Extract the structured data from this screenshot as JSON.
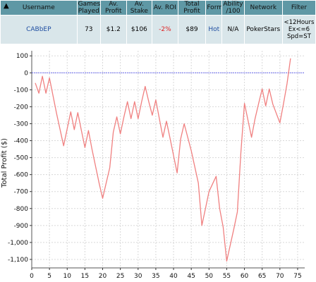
{
  "table": {
    "headers": [
      "Username",
      "Games Played",
      "Av. Profit",
      "Av. Stake",
      "Av. ROI",
      "Total Profit",
      "Form",
      "Ability /100",
      "Network",
      "Filter"
    ],
    "row": {
      "username": "CABbEP",
      "games_played": "73",
      "av_profit": "$1.2",
      "av_stake": "$106",
      "av_roi": "-2%",
      "total_profit": "$89",
      "form": "Hot",
      "ability": "N/A",
      "network": "PokerStars",
      "filter": [
        "<12Hours",
        "Ex<=6",
        "Spd=ST"
      ]
    }
  },
  "colors": {
    "header_bg": "#5f98a5",
    "row_bg": "#d9e6ea",
    "line": "#f08080",
    "zero_line": "#6a6af0",
    "grid": "#d8d8d8"
  },
  "chart_data": {
    "type": "line",
    "ylabel": "Total Profit ($)",
    "xlabel": "",
    "xlim": [
      0,
      77
    ],
    "ylim": [
      -1150,
      130
    ],
    "x_ticks": [
      0,
      5,
      10,
      15,
      20,
      25,
      30,
      35,
      40,
      45,
      50,
      55,
      60,
      65,
      70,
      75
    ],
    "y_ticks": [
      100,
      0,
      -100,
      -200,
      -300,
      -400,
      -500,
      -600,
      -700,
      -800,
      -900,
      -1000,
      -1100
    ],
    "y_tick_labels": [
      "100",
      "0",
      "-100",
      "-200",
      "-300",
      "-400",
      "-500",
      "-600",
      "-700",
      "-800",
      "-900",
      "-1,000",
      "-1,100"
    ],
    "grid": true,
    "reference_line": 0,
    "series": [
      {
        "x": [
          1,
          2,
          3,
          4,
          5,
          7,
          9,
          11,
          12,
          13,
          14,
          15,
          16,
          17,
          19,
          20,
          21,
          22,
          23,
          24,
          25,
          26,
          27,
          28,
          29,
          30,
          31,
          32,
          33,
          34,
          35,
          36,
          37,
          38,
          39,
          41,
          42,
          43,
          45,
          47,
          48,
          49,
          50,
          52,
          53,
          54,
          55,
          57,
          58,
          59,
          60,
          62,
          63,
          64,
          65,
          66,
          67,
          68,
          70,
          71,
          72,
          73
        ],
        "y": [
          -60,
          -120,
          -20,
          -120,
          -30,
          -240,
          -430,
          -230,
          -335,
          -235,
          -340,
          -440,
          -340,
          -450,
          -650,
          -740,
          -650,
          -560,
          -350,
          -260,
          -360,
          -260,
          -170,
          -270,
          -170,
          -270,
          -170,
          -80,
          -170,
          -250,
          -160,
          -270,
          -380,
          -285,
          -385,
          -590,
          -390,
          -300,
          -460,
          -650,
          -900,
          -800,
          -700,
          -610,
          -800,
          -910,
          -1110,
          -920,
          -820,
          -470,
          -180,
          -380,
          -270,
          -180,
          -95,
          -195,
          -95,
          -185,
          -295,
          -185,
          -65,
          85
        ]
      }
    ]
  }
}
